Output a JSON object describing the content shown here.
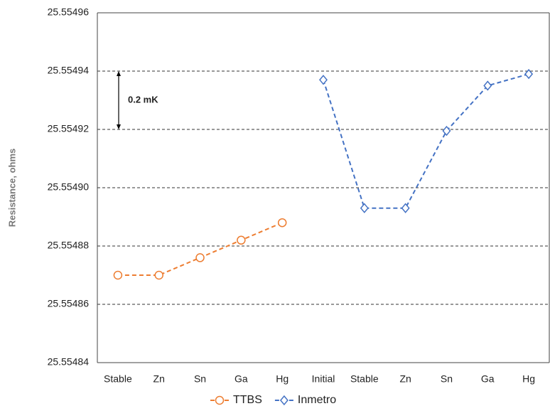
{
  "chart_data": {
    "type": "line",
    "y_label": "Resistance, ohms",
    "categories": [
      "Stable",
      "Zn",
      "Sn",
      "Ga",
      "Hg",
      "Initial",
      "Stable",
      "Zn",
      "Sn",
      "Ga",
      "Hg"
    ],
    "series": [
      {
        "name": "TTBS",
        "color": "#ed7d31",
        "marker": "circle",
        "values": [
          25.55487,
          25.55487,
          25.554876,
          25.554882,
          25.554888,
          null,
          null,
          null,
          null,
          null,
          null
        ]
      },
      {
        "name": "Inmetro",
        "color": "#4472c4",
        "marker": "diamond",
        "values": [
          null,
          null,
          null,
          null,
          null,
          25.554937,
          25.554893,
          25.554893,
          25.5549195,
          25.554935,
          25.554939
        ]
      }
    ],
    "ylim": [
      25.55484,
      25.55496
    ],
    "yticks": [
      25.55484,
      25.55486,
      25.55488,
      {
        "value": 25.5549,
        "label": "25.55490"
      },
      25.55492,
      25.55494,
      25.55496
    ],
    "grid": true,
    "annotation": "0.2 mK",
    "legend": "bottom"
  }
}
